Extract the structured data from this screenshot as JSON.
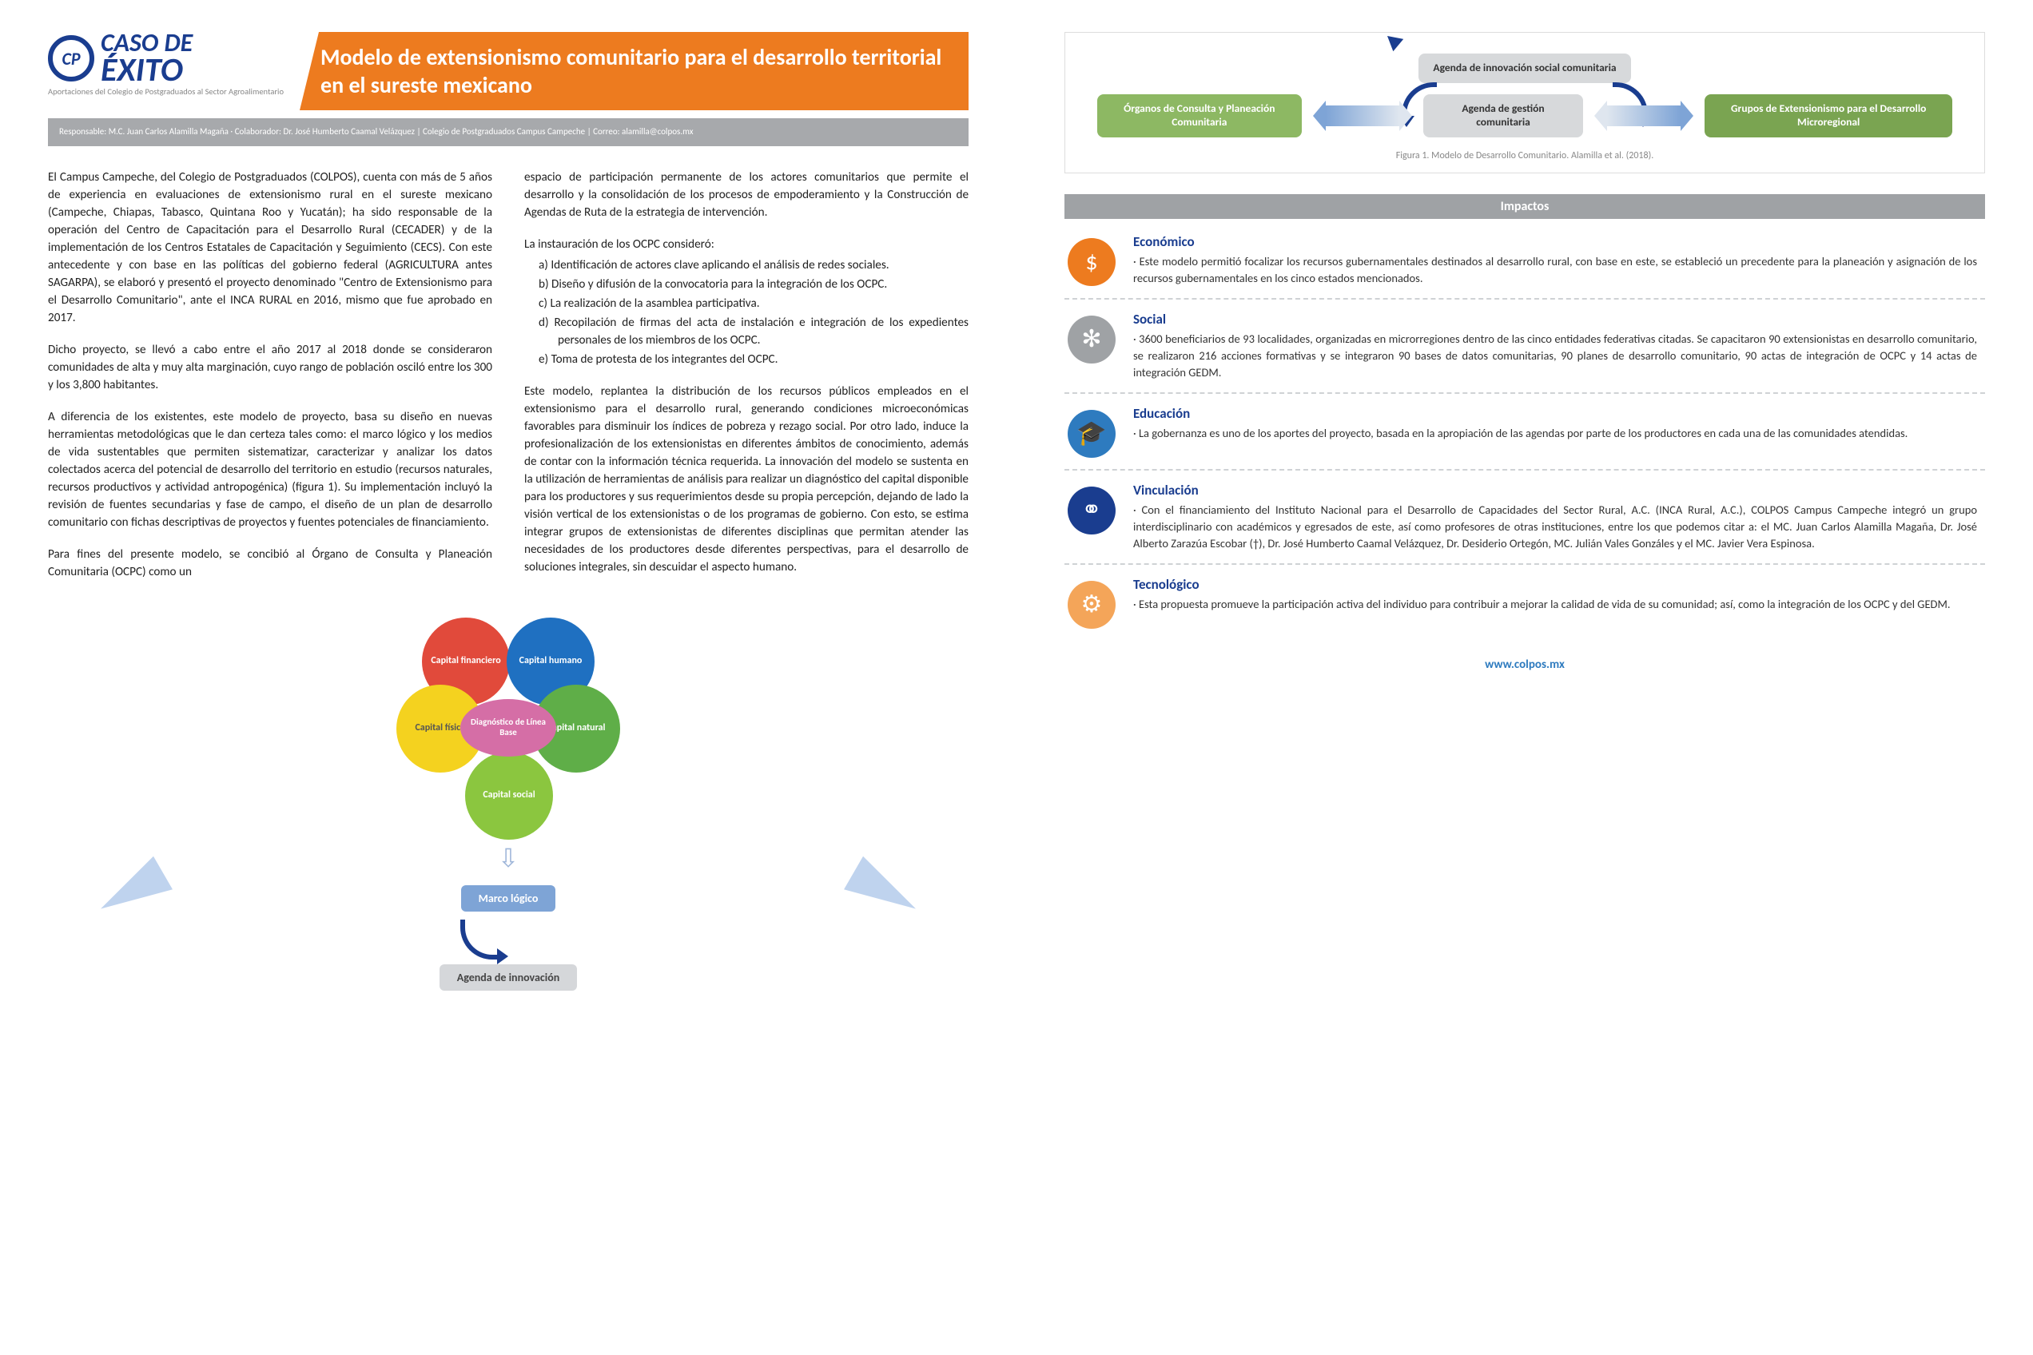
{
  "header": {
    "caso": "CASO DE",
    "exito": "ÉXITO",
    "logo_sub": "Aportaciones del Colegio de Postgraduados al Sector Agroalimentario",
    "title": "Modelo de extensionismo comunitario para el desarrollo territorial en el sureste mexicano",
    "responsable": "Responsable: M.C. Juan Carlos Alamilla Magaña · Colaborador: Dr. José Humberto Caamal Velázquez | Colegio de Postgraduados Campus Campeche | Correo: alamilla@colpos.mx"
  },
  "left_col": {
    "p1": "El Campus Campeche, del Colegio de Postgraduados (COLPOS), cuenta con más de 5 años de experiencia en evaluaciones de extensionismo rural en el sureste mexicano (Campeche, Chiapas, Tabasco, Quintana Roo y Yucatán); ha sido responsable de la operación del Centro de Capacitación para el Desarrollo Rural (CECADER) y de la implementación de los Centros Estatales de Capacitación y Seguimiento (CECS). Con este antecedente y con base en las políticas del gobierno federal (AGRICULTURA antes SAGARPA), se elaboró y presentó el proyecto denominado \"Centro de Extensionismo para el Desarrollo Comunitario\", ante el INCA RURAL en 2016, mismo que fue aprobado en 2017.",
    "p2": "Dicho proyecto, se llevó a cabo entre el año 2017 al 2018 donde se consideraron comunidades de alta y muy alta marginación, cuyo rango de población osciló entre los 300 y los 3,800 habitantes.",
    "p3": "A diferencia de los existentes, este modelo de proyecto, basa su diseño en nuevas herramientas metodológicas que le dan certeza tales como: el marco lógico y los medios de vida sustentables que permiten sistematizar, caracterizar y analizar los datos colectados acerca del potencial de desarrollo del territorio en estudio (recursos naturales, recursos productivos y actividad antropogénica) (figura 1). Su implementación incluyó la revisión de fuentes secundarias y fase de campo, el diseño de un plan de desarrollo comunitario con fichas descriptivas de proyectos y fuentes potenciales de financiamiento.",
    "p4": "Para fines del presente modelo, se concibió al Órgano de Consulta y Planeación Comunitaria (OCPC) como un"
  },
  "right_col": {
    "p1": "espacio de participación permanente de los actores comunitarios que permite el desarrollo y la consolidación de los procesos de empoderamiento y la Construcción de Agendas de Ruta de la estrategia de intervención.",
    "lead": "La instauración de los OCPC consideró:",
    "items": {
      "a": "a) Identificación de actores clave aplicando el análisis de redes sociales.",
      "b": "b) Diseño y difusión de la convocatoria para la integración de los OCPC.",
      "c": "c) La realización de la asamblea participativa.",
      "d": "d) Recopilación de firmas del acta de instalación e integración de los expedientes personales de los miembros de los OCPC.",
      "e": "e) Toma de protesta de los integrantes del OCPC."
    },
    "p2": "Este modelo, replantea la distribución de los recursos públicos empleados en el extensionismo para el desarrollo rural, generando condiciones microeconómicas favorables para disminuir los índices de pobreza y rezago social. Por otro lado, induce la profesionalización de los extensionistas en diferentes ámbitos de conocimiento, además de contar con la información técnica requerida. La innovación del modelo se sustenta en la utilización de herramientas de análisis para realizar un diagnóstico del capital disponible para los productores y sus requerimientos desde su propia percepción, dejando de lado la visión vertical de los extensionistas o de los programas de gobierno. Con esto, se estima integrar grupos de extensionistas de diferentes disciplinas que permitan atender las necesidades de los productores desde diferentes perspectivas, para el desarrollo de soluciones integrales, sin descuidar el aspecto humano."
  },
  "wheel": {
    "center": "Diagnóstico de Línea Base",
    "ch": "Capital humano",
    "cf": "Capital financiero",
    "cfis": "Capital físico",
    "cn": "Capital natural",
    "cs": "Capital social",
    "colors": {
      "ch": "#1f70c1",
      "cf": "#e14a3b",
      "cfis": "#f4d21f",
      "cn": "#5fae48",
      "cs": "#8bc63f",
      "center": "#d56ea6"
    }
  },
  "flow": {
    "box1": "Marco lógico",
    "box2": "Agenda de innovación"
  },
  "top_diagram": {
    "b1": "Agenda de innovación social comunitaria",
    "b2": "Órganos de Consulta y Planeación Comunitaria",
    "b3": "Agenda de gestión comunitaria",
    "b4": "Grupos de Extensionismo para el Desarrollo Microregional",
    "caption": "Figura 1. Modelo de Desarrollo Comunitario. Alamilla et al. (2018)."
  },
  "impactos": {
    "title": "Impactos",
    "items": [
      {
        "icon": "$",
        "cls": "ic-orange",
        "h": "Económico",
        "p": "· Este modelo permitió focalizar los recursos gubernamentales destinados al desarrollo rural, con base en este, se estableció un precedente para la planeación y asignación de los recursos gubernamentales en los cinco estados mencionados."
      },
      {
        "icon": "✻",
        "cls": "ic-grey",
        "h": "Social",
        "p": "· 3600 beneficiarios de 93 localidades, organizadas en microrregiones dentro de las cinco entidades federativas citadas. Se capacitaron 90 extensionistas en desarrollo comunitario, se realizaron 216 acciones formativas y se integraron 90 bases de datos comunitarias, 90 planes de desarrollo comunitario, 90 actas de integración de OCPC y 14 actas de integración GEDM."
      },
      {
        "icon": "🎓",
        "cls": "ic-blue",
        "h": "Educación",
        "p": "· La gobernanza es uno de los aportes del proyecto, basada en la apropiación de las agendas por parte de los productores en cada una de las comunidades atendidas."
      },
      {
        "icon": "⚭",
        "cls": "ic-dblue",
        "h": "Vinculación",
        "p": "· Con el financiamiento del Instituto Nacional para el Desarrollo de Capacidades del Sector Rural, A.C. (INCA Rural, A.C.), COLPOS Campus Campeche integró un grupo interdisciplinario con académicos y egresados de este, así como profesores de otras instituciones, entre los que podemos citar a: el MC. Juan Carlos Alamilla Magaña, Dr. José Alberto Zarazúa Escobar (†), Dr. José Humberto Caamal Velázquez, Dr. Desiderio Ortegón, MC. Julián Vales Gonzáles y el MC. Javier Vera Espinosa."
      },
      {
        "icon": "⚙",
        "cls": "ic-lorange",
        "h": "Tecnológico",
        "p": "· Esta propuesta promueve la participación activa del individuo para contribuir a mejorar la calidad de vida de su comunidad; así, como la integración de los OCPC y del GEDM."
      }
    ]
  },
  "url": "www.colpos.mx"
}
